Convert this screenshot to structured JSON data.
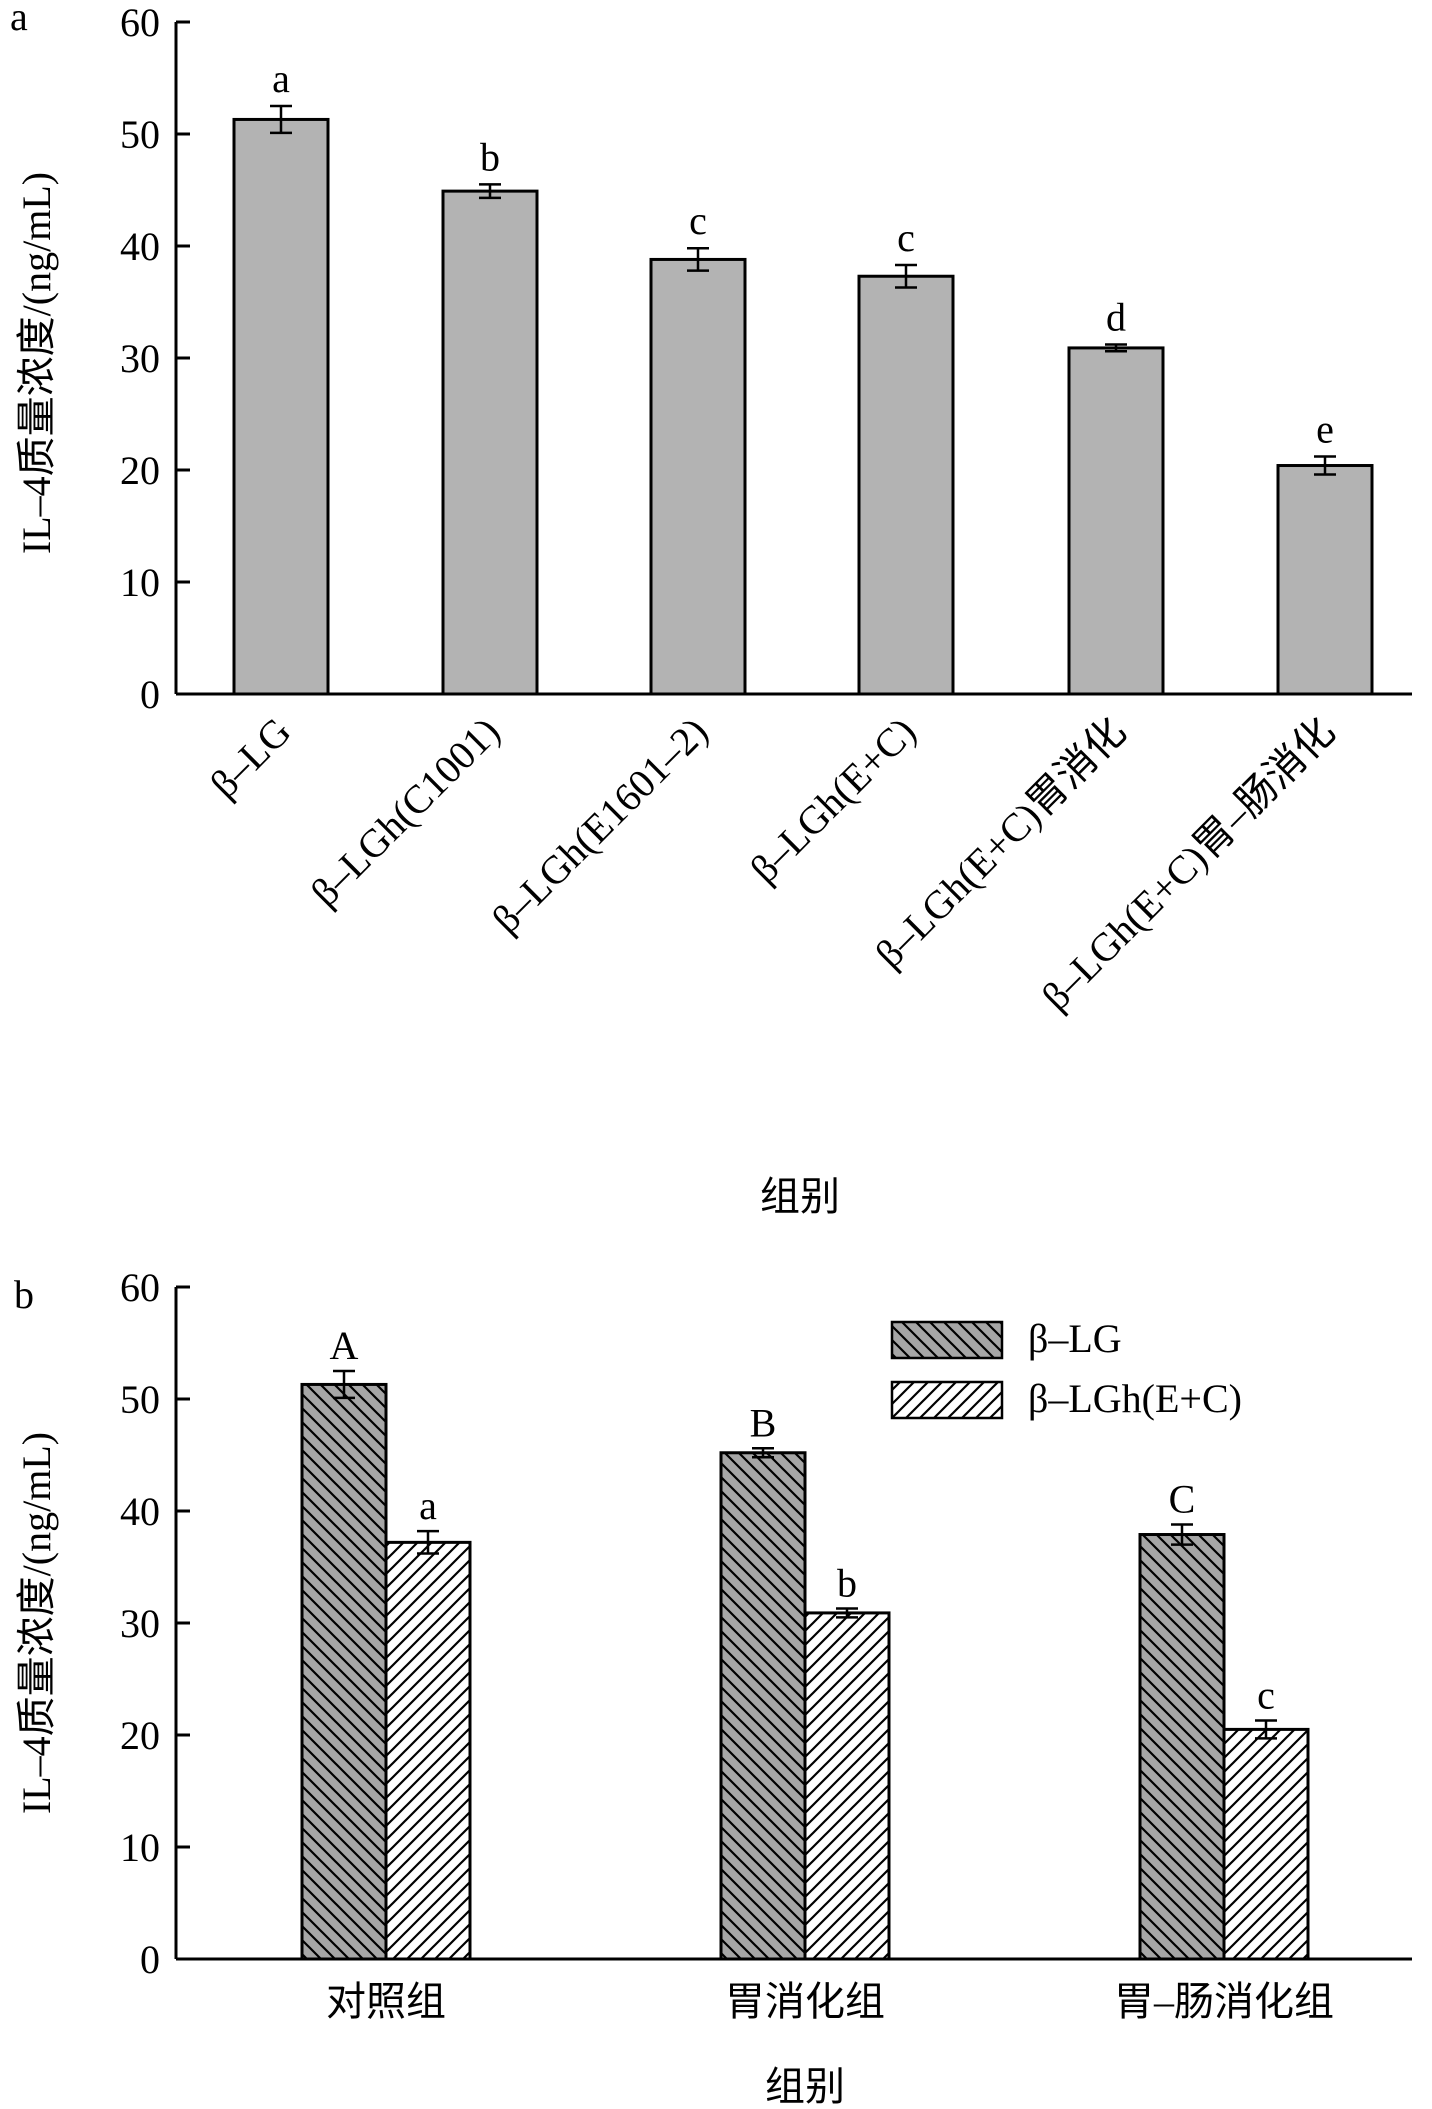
{
  "chart_data": [
    {
      "panel_label": "a",
      "type": "bar",
      "categories": [
        "β–LG",
        "β–LGh(C1001)",
        "β–LGh(E1601–2)",
        "β–LGh(E+C)",
        "β–LGh(E+C)胃消化",
        "β–LGh(E+C)胃–肠消化"
      ],
      "values": [
        51.3,
        44.9,
        38.8,
        37.3,
        30.9,
        20.4
      ],
      "errors": [
        1.2,
        0.6,
        1.0,
        1.0,
        0.3,
        0.8
      ],
      "significance": [
        "a",
        "b",
        "c",
        "c",
        "d",
        "e"
      ],
      "xlabel": "组别",
      "ylabel": "IL–4质量浓度/(ng/mL)",
      "ylim": [
        0,
        60
      ],
      "yticks": [
        0,
        10,
        20,
        30,
        40,
        50,
        60
      ],
      "bar_color": "#b3b3b3",
      "grid": false,
      "legend": false
    },
    {
      "panel_label": "b",
      "type": "bar",
      "categories": [
        "对照组",
        "胃消化组",
        "胃–肠消化组"
      ],
      "series": [
        {
          "name": "β–LG",
          "values": [
            51.3,
            45.2,
            37.9
          ],
          "errors": [
            1.2,
            0.4,
            0.9
          ],
          "significance": [
            "A",
            "B",
            "C"
          ],
          "fill": "#a6a6a6",
          "hatch": "diagonal-down"
        },
        {
          "name": "β–LGh(E+C)",
          "values": [
            37.2,
            30.9,
            20.5
          ],
          "errors": [
            1.0,
            0.4,
            0.8
          ],
          "significance": [
            "a",
            "b",
            "c"
          ],
          "fill": "#ffffff",
          "hatch": "diagonal-up"
        }
      ],
      "xlabel": "组别",
      "ylabel": "IL–4质量浓度/(ng/mL)",
      "ylim": [
        0,
        60
      ],
      "yticks": [
        0,
        10,
        20,
        30,
        40,
        50,
        60
      ],
      "grid": false,
      "legend": "top-right"
    }
  ]
}
